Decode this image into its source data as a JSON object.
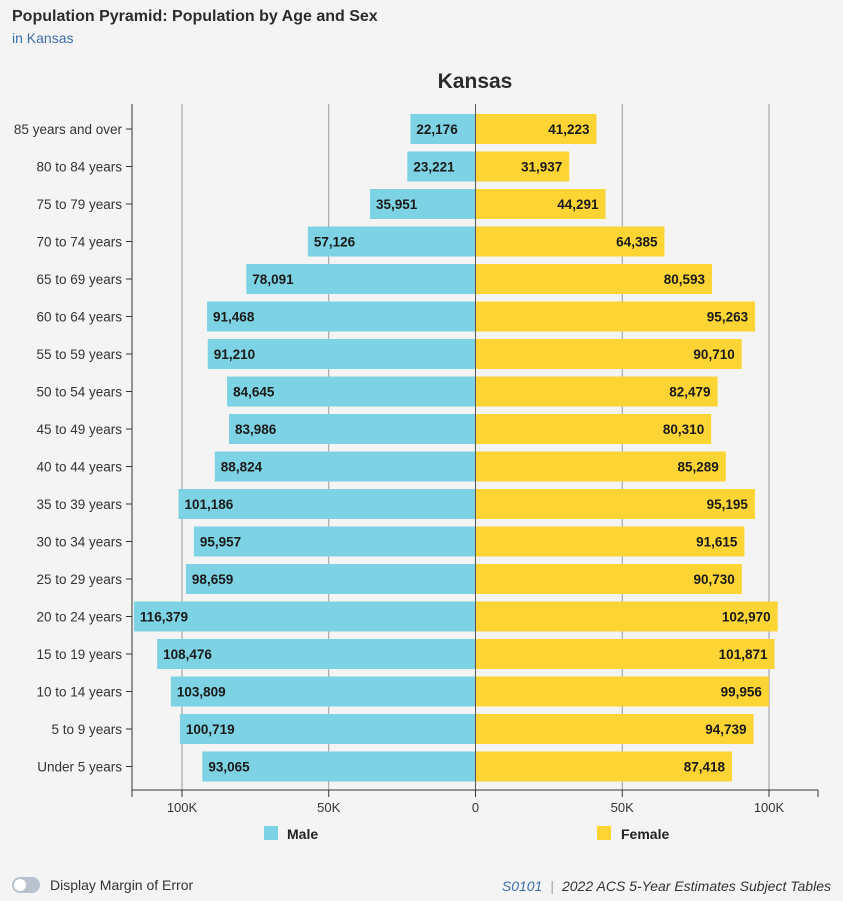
{
  "header": {
    "title": "Population Pyramid: Population by Age and Sex",
    "subtitle": "in Kansas"
  },
  "colors": {
    "male": "#7dd3e3",
    "female": "#fcd535",
    "gridline": "#999999",
    "axis": "#333333"
  },
  "chart_data": {
    "type": "bar",
    "orientation": "horizontal-pyramid",
    "title": "Kansas",
    "categories": [
      "85 years and over",
      "80 to 84 years",
      "75 to 79 years",
      "70 to 74 years",
      "65 to 69 years",
      "60 to 64 years",
      "55 to 59 years",
      "50 to 54 years",
      "45 to 49 years",
      "40 to 44 years",
      "35 to 39 years",
      "30 to 34 years",
      "25 to 29 years",
      "20 to 24 years",
      "15 to 19 years",
      "10 to 14 years",
      "5 to 9 years",
      "Under 5 years"
    ],
    "series": [
      {
        "name": "Male",
        "side": "left",
        "values": [
          22176,
          23221,
          35951,
          57126,
          78091,
          91468,
          91210,
          84645,
          83986,
          88824,
          101186,
          95957,
          98659,
          116379,
          108476,
          103809,
          100719,
          93065
        ],
        "labels": [
          "22,176",
          "23,221",
          "35,951",
          "57,126",
          "78,091",
          "91,468",
          "91,210",
          "84,645",
          "83,986",
          "88,824",
          "101,186",
          "95,957",
          "98,659",
          "116,379",
          "108,476",
          "103,809",
          "100,719",
          "93,065"
        ]
      },
      {
        "name": "Female",
        "side": "right",
        "values": [
          41223,
          31937,
          44291,
          64385,
          80593,
          95263,
          90710,
          82479,
          80310,
          85289,
          95195,
          91615,
          90730,
          102970,
          101871,
          99956,
          94739,
          87418
        ],
        "labels": [
          "41,223",
          "31,937",
          "44,291",
          "64,385",
          "80,593",
          "95,263",
          "90,710",
          "82,479",
          "80,310",
          "85,289",
          "95,195",
          "91,615",
          "90,730",
          "102,970",
          "101,871",
          "99,956",
          "94,739",
          "87,418"
        ]
      }
    ],
    "xlim": [
      -117000,
      117000
    ],
    "x_ticks": [
      -100000,
      -50000,
      0,
      50000,
      100000
    ],
    "x_tick_labels": [
      "100K",
      "50K",
      "0",
      "50K",
      "100K"
    ],
    "grid": true,
    "legend_placement": "bottom"
  },
  "footer": {
    "toggle_label": "Display Margin of Error",
    "table_id": "S0101",
    "source": "2022 ACS 5-Year Estimates Subject Tables"
  }
}
